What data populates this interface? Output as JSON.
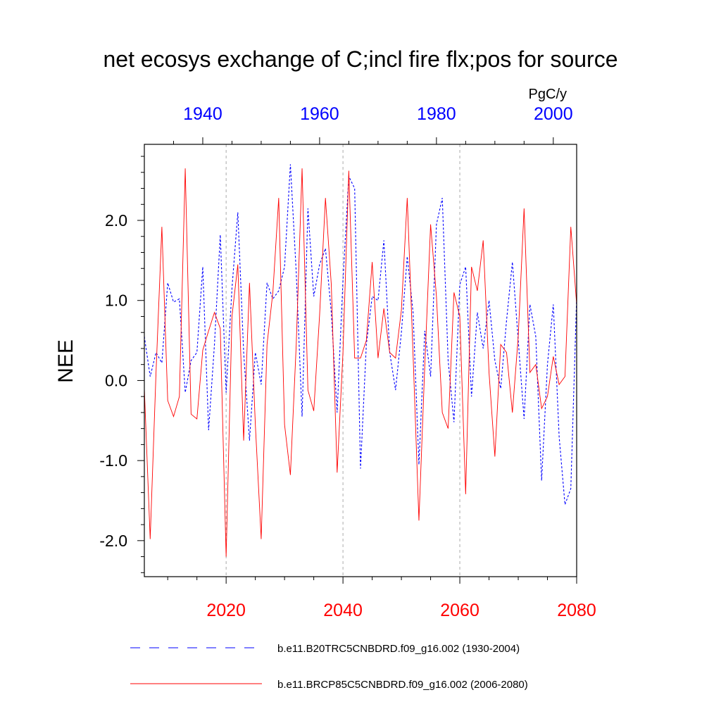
{
  "chart_data": {
    "type": "line",
    "title": "net ecosys exchange of C;incl fire flx;pos for source",
    "units": "PgC/y",
    "ylabel": "NEE",
    "ylim": [
      -2.45,
      2.95
    ],
    "y_ticks": [
      -2.0,
      -1.0,
      0.0,
      1.0,
      2.0
    ],
    "y_tick_labels": [
      "-2.0",
      "-1.0",
      "0.0",
      "1.0",
      "2.0"
    ],
    "grid": "dashed vertical lines at 2020, 2040, 2060",
    "top_axis": {
      "xlim": [
        1930,
        2004
      ],
      "ticks": [
        1940,
        1960,
        1980,
        2000
      ],
      "tick_labels": [
        "1940",
        "1960",
        "1980",
        "2000"
      ],
      "color": "#0000ff"
    },
    "bottom_axis": {
      "xlim": [
        2006,
        2080
      ],
      "ticks": [
        2020,
        2040,
        2060,
        2080
      ],
      "tick_labels": [
        "2020",
        "2040",
        "2060",
        "2080"
      ],
      "color": "#ff0000"
    },
    "legend_position": "bottom",
    "series": [
      {
        "name": "b.e11.B20TRC5CNBDRD.f09_g16.002 (1930-2004)",
        "color": "#0000ff",
        "style": "dashed",
        "axis": "top",
        "x_start": 1930,
        "values": [
          0.55,
          0.05,
          0.35,
          0.22,
          1.22,
          0.98,
          1.02,
          -0.15,
          0.25,
          0.35,
          1.42,
          -0.62,
          0.45,
          1.82,
          -0.15,
          1.15,
          2.1,
          0.35,
          -0.75,
          0.35,
          -0.05,
          1.22,
          1.02,
          1.12,
          1.42,
          2.7,
          1.35,
          -0.45,
          2.15,
          1.05,
          1.45,
          1.65,
          0.85,
          -0.4,
          1.25,
          2.55,
          2.4,
          -1.1,
          0.45,
          1.05,
          1.0,
          1.75,
          0.35,
          -0.12,
          0.6,
          1.55,
          0.85,
          -1.05,
          0.62,
          0.05,
          1.95,
          2.28,
          0.25,
          -0.52,
          1.2,
          1.42,
          -0.2,
          0.85,
          0.4,
          1.0,
          0.25,
          -0.1,
          0.75,
          1.48,
          0.5,
          -0.48,
          0.95,
          0.55,
          -1.25,
          0.2,
          0.95,
          -0.7,
          -1.55,
          -1.35,
          1.05
        ]
      },
      {
        "name": "b.e11.BRCP85C5CNBDRD.f09_g16.002 (2006-2080)",
        "color": "#ff0000",
        "style": "solid",
        "axis": "bottom",
        "x_start": 2006,
        "values": [
          -0.1,
          -1.98,
          0.1,
          1.92,
          -0.25,
          -0.45,
          -0.2,
          2.65,
          -0.42,
          -0.48,
          0.38,
          0.62,
          0.85,
          0.65,
          -2.2,
          0.8,
          1.45,
          -0.75,
          1.22,
          -0.55,
          -1.98,
          0.45,
          1.1,
          2.28,
          -0.55,
          -1.18,
          0.45,
          2.65,
          -0.12,
          -0.38,
          0.82,
          2.28,
          1.2,
          -1.15,
          0.35,
          2.62,
          0.28,
          0.28,
          0.5,
          1.48,
          0.28,
          0.9,
          0.35,
          0.28,
          0.88,
          2.28,
          0.32,
          -1.75,
          0.18,
          1.95,
          1.05,
          -0.4,
          -0.6,
          1.1,
          0.8,
          -1.42,
          1.42,
          1.12,
          1.75,
          0.1,
          -0.95,
          0.45,
          0.35,
          -0.4,
          0.55,
          2.15,
          0.1,
          0.2,
          -0.35,
          -0.2,
          0.3,
          -0.05,
          0.05,
          1.92,
          0.95
        ]
      }
    ]
  }
}
